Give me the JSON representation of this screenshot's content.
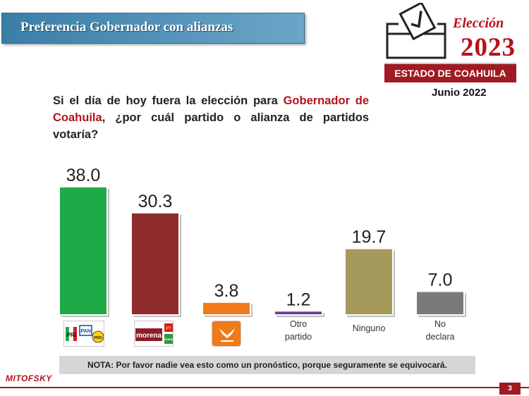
{
  "header": {
    "title": "Preferencia Gobernador con alianzas",
    "logo_eleccion": "Elección",
    "logo_year": "2023",
    "logo_estado": "ESTADO DE COAHUILA",
    "date": "Junio 2022"
  },
  "question": {
    "part1": "Si el día de hoy fuera la elección para ",
    "highlight": "Gobernador de Coahuila",
    "part2": ", ¿por cuál partido o alianza de partidos votaría?"
  },
  "chart_data": {
    "type": "bar",
    "categories": [
      "PRI-PAN-PRD",
      "Morena-PT-PVEM",
      "Movimiento Ciudadano",
      "Otro partido",
      "Ninguno",
      "No declara"
    ],
    "values": [
      38.0,
      30.3,
      3.8,
      1.2,
      19.7,
      7.0
    ],
    "value_labels": [
      "38.0",
      "30.3",
      "3.8",
      "1.2",
      "19.7",
      "7.0"
    ],
    "text_labels": [
      "",
      "",
      "",
      "Otro partido",
      "Ninguno",
      "No declara"
    ],
    "colors": [
      "#1faa4a",
      "#8e2b2b",
      "#f07a1a",
      "#6a3f8f",
      "#a39a5c",
      "#7a7a7a"
    ],
    "ylim": [
      0,
      38.0
    ],
    "grid": false,
    "title": "",
    "xlabel": "",
    "ylabel": ""
  },
  "party_logos": {
    "pri": "PRI",
    "pan": "PAN",
    "prd": "PRD",
    "morena": "morena",
    "pt": "PT",
    "verde": "VERDE"
  },
  "note": "NOTA: Por favor nadie vea esto como un pronóstico, porque seguramente se equivocará.",
  "footer": {
    "brand": "MITOFSKY",
    "page": "3"
  }
}
